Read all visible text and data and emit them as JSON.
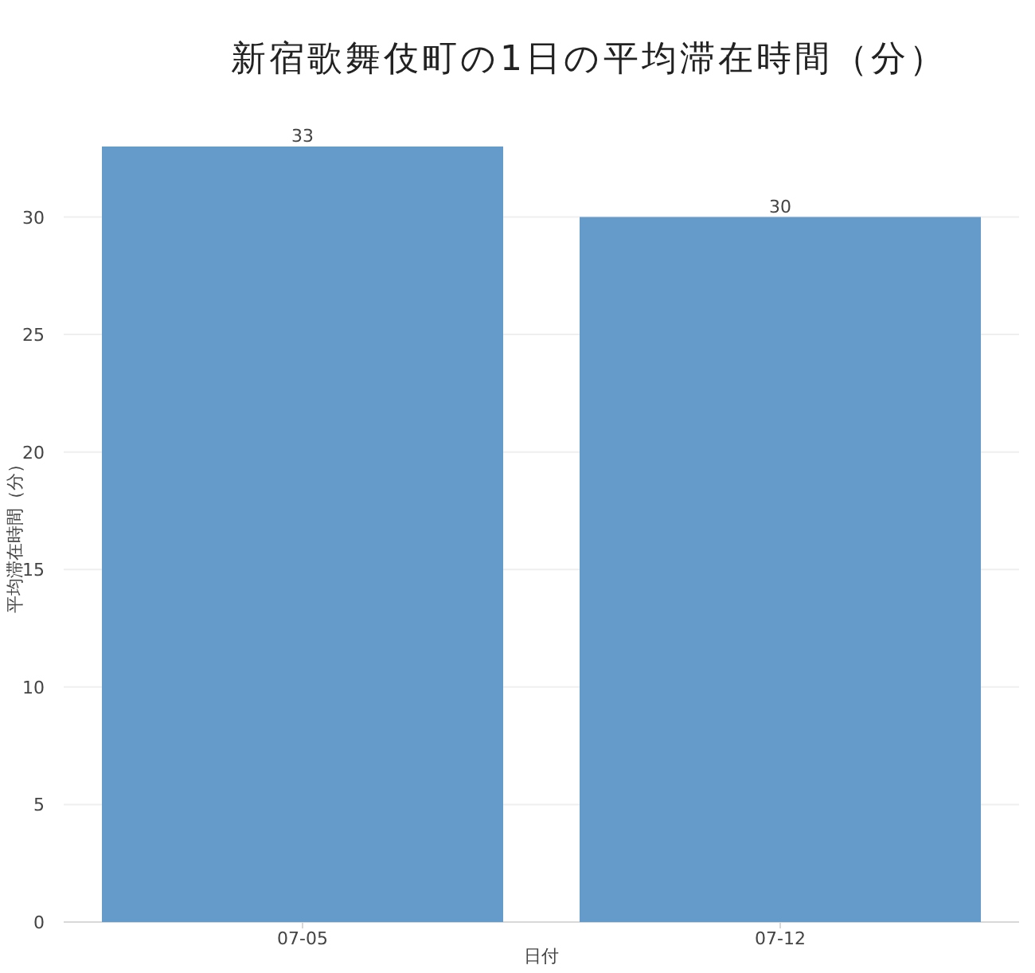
{
  "chart_data": {
    "type": "bar",
    "title": "新宿歌舞伎町の1日の平均滞在時間（分）",
    "xlabel": "日付",
    "ylabel": "平均滞在時間（分）",
    "categories": [
      "07-05",
      "07-12"
    ],
    "values": [
      33,
      30
    ],
    "color": "#659bcb",
    "data_labels": true,
    "ylim": [
      0,
      33
    ],
    "yticks": [
      0,
      5,
      10,
      15,
      20,
      25,
      30
    ],
    "grid": "y"
  }
}
